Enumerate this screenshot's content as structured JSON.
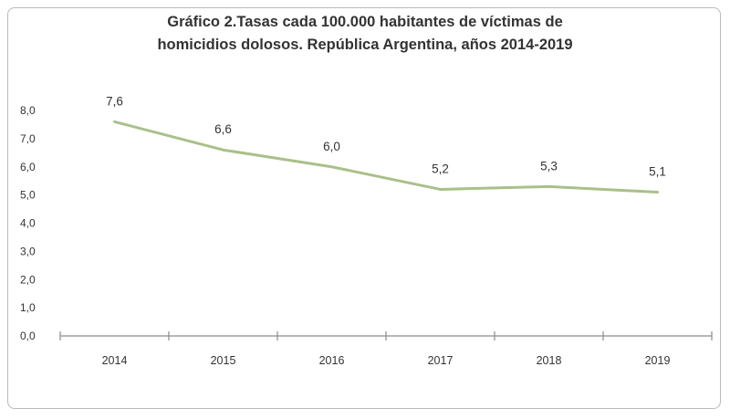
{
  "chart_data": {
    "type": "line",
    "title_line1": "Gráfico 2.Tasas cada 100.000 habitantes de víctimas de",
    "title_line2": "homicidios dolosos. República Argentina, años 2014-2019",
    "categories": [
      "2014",
      "2015",
      "2016",
      "2017",
      "2018",
      "2019"
    ],
    "series": [
      {
        "values": [
          7.6,
          6.6,
          6.0,
          5.2,
          5.3,
          5.1
        ],
        "labels": [
          "7,6",
          "6,6",
          "6,0",
          "5,2",
          "5,3",
          "5,1"
        ],
        "color": "#a9c08a"
      }
    ],
    "yticks": [
      "0,0",
      "1,0",
      "2,0",
      "3,0",
      "4,0",
      "5,0",
      "6,0",
      "7,0",
      "8,0"
    ],
    "ylim": [
      0,
      8
    ],
    "grid": false,
    "legend": "none",
    "axis_color": "#8c8c8c"
  }
}
